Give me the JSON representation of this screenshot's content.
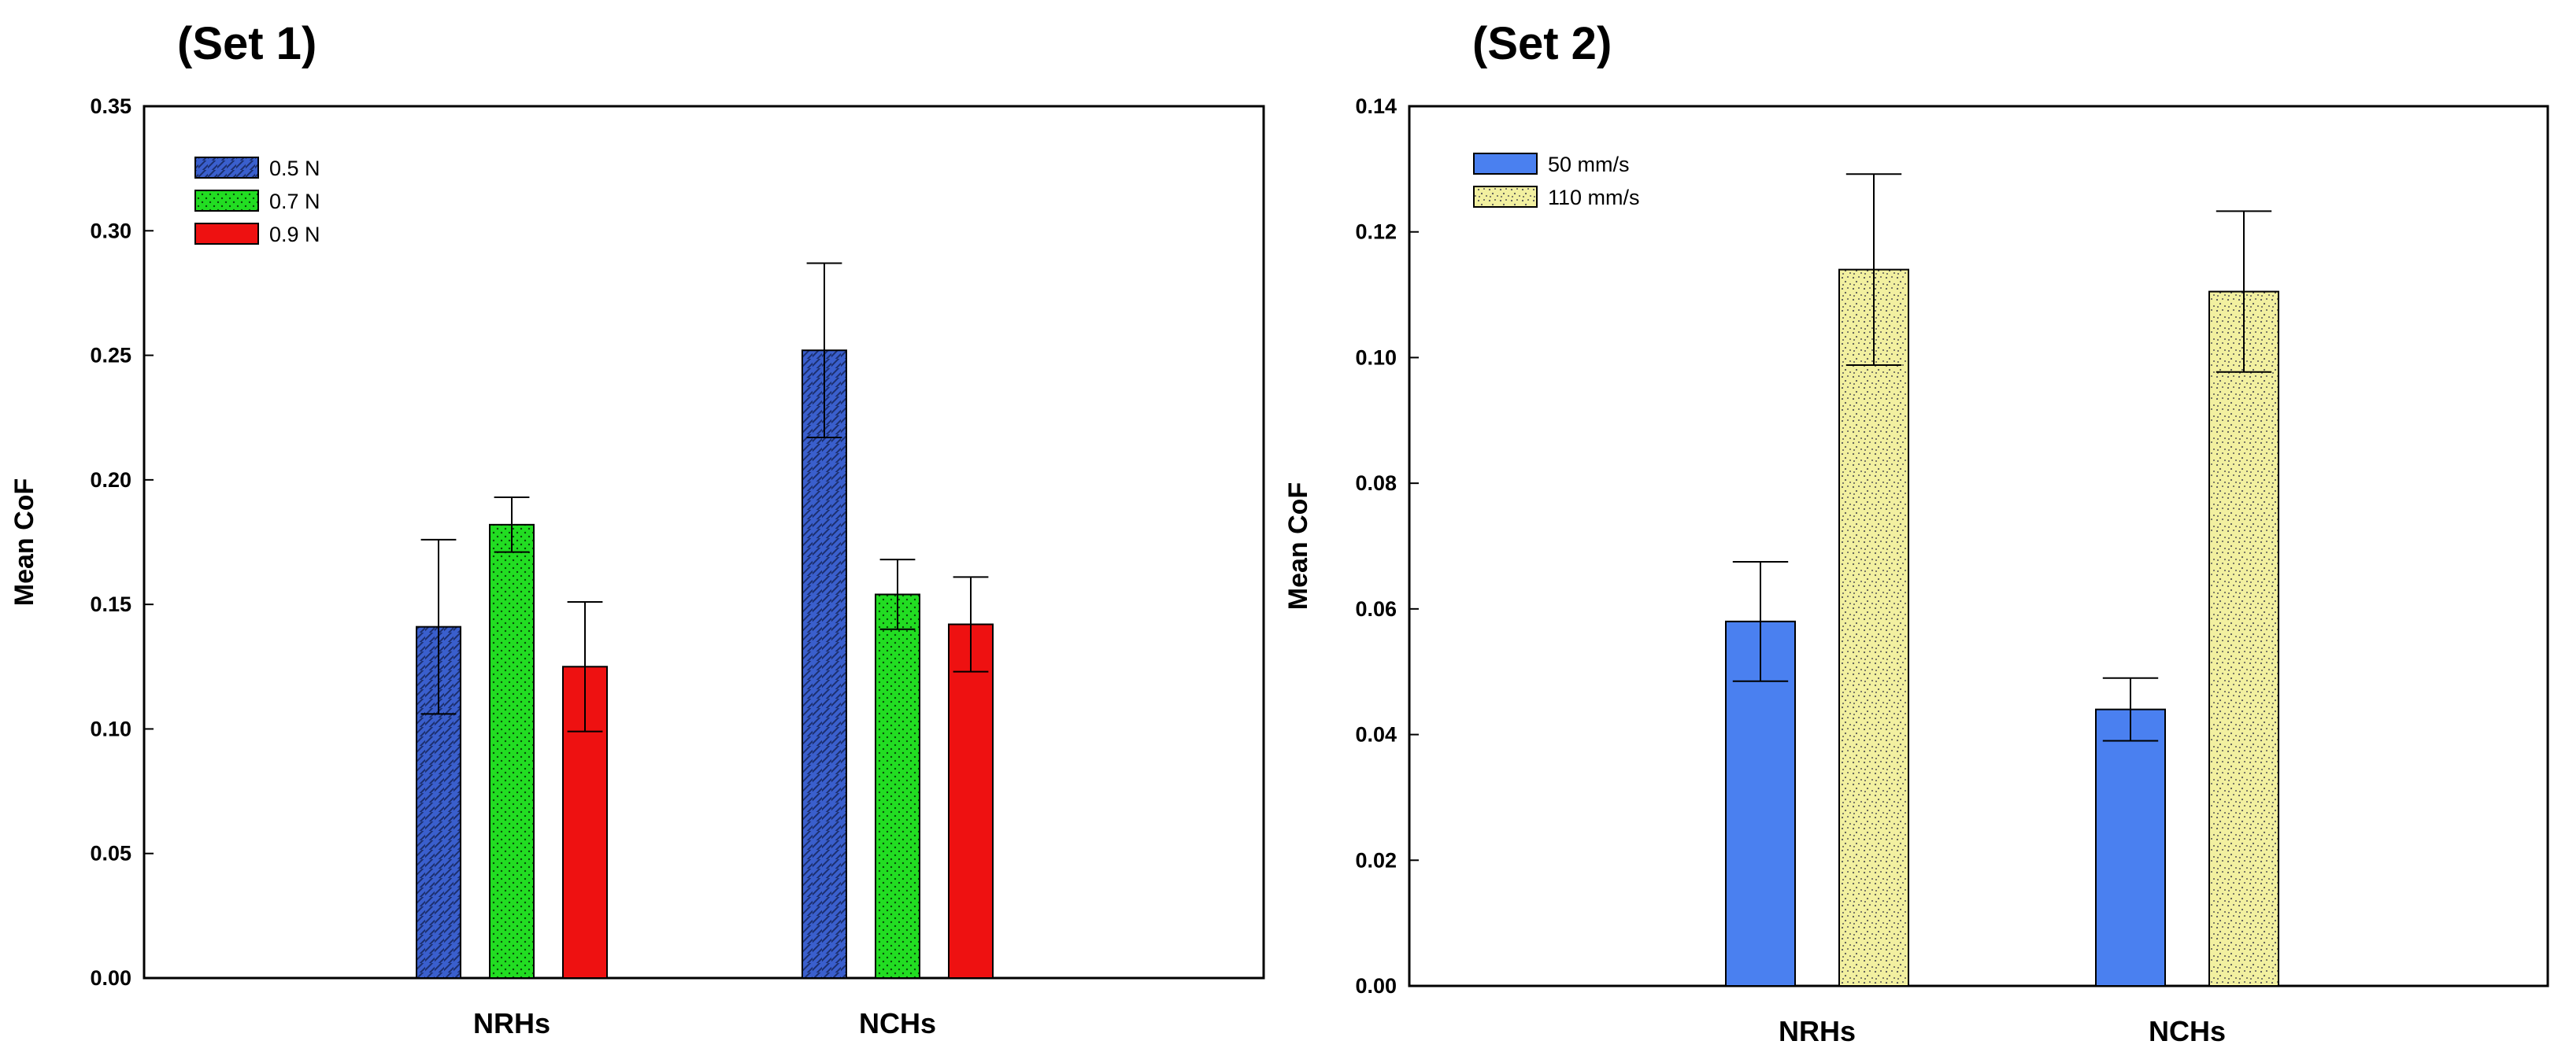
{
  "chart_data": [
    {
      "type": "bar",
      "title": "(Set 1)",
      "xlabel": "",
      "ylabel": "Mean CoF",
      "ylim": [
        0,
        0.35
      ],
      "yticks": [
        "0.00",
        "0.05",
        "0.10",
        "0.15",
        "0.20",
        "0.25",
        "0.30",
        "0.35"
      ],
      "categories": [
        "NRHs",
        "NCHs"
      ],
      "legend_position": "top-left",
      "series": [
        {
          "name": "0.5 N",
          "values": [
            0.141,
            0.252
          ],
          "errors": [
            0.035,
            0.035
          ],
          "color": "#3a5fcd",
          "pattern": "hatch"
        },
        {
          "name": "0.7 N",
          "values": [
            0.182,
            0.154
          ],
          "errors": [
            0.011,
            0.014
          ],
          "color": "#22dd22",
          "pattern": "dots"
        },
        {
          "name": "0.9 N",
          "values": [
            0.125,
            0.142
          ],
          "errors": [
            0.026,
            0.019
          ],
          "color": "#ee1111",
          "pattern": "solid"
        }
      ]
    },
    {
      "type": "bar",
      "title": "(Set 2)",
      "xlabel": "",
      "ylabel": "Mean CoF",
      "ylim": [
        0,
        0.14
      ],
      "yticks": [
        "0.00",
        "0.02",
        "0.04",
        "0.06",
        "0.08",
        "0.10",
        "0.12",
        "0.14"
      ],
      "categories": [
        "NRHs",
        "NCHs"
      ],
      "legend_position": "top-left",
      "series": [
        {
          "name": "50 mm/s",
          "values": [
            0.058,
            0.044
          ],
          "errors": [
            0.0095,
            0.005
          ],
          "color": "#4a80f0",
          "pattern": "solid"
        },
        {
          "name": "110 mm/s",
          "values": [
            0.114,
            0.1105
          ],
          "errors": [
            0.0152,
            0.0128
          ],
          "color": "#f2f0a0",
          "pattern": "speckle"
        }
      ]
    }
  ]
}
